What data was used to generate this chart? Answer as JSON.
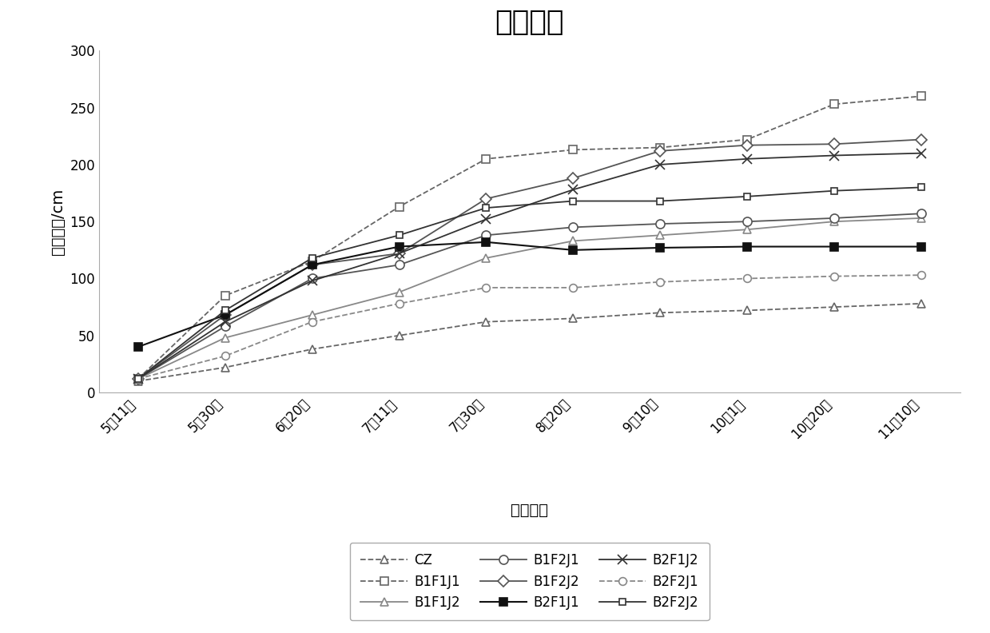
{
  "title": "新梢长度",
  "xlabel": "观测时间",
  "ylabel": "新梢长度/cm",
  "x_labels": [
    "5月11日",
    "5月30日",
    "6月20日",
    "7月11日",
    "7月30日",
    "8月20日",
    "9月10日",
    "10月1日",
    "10月20日",
    "11月10日"
  ],
  "ylim": [
    0,
    300
  ],
  "yticks": [
    0,
    50,
    100,
    150,
    200,
    250,
    300
  ],
  "series": [
    {
      "name": "CZ",
      "values": [
        10,
        22,
        38,
        50,
        62,
        65,
        70,
        72,
        75,
        78
      ],
      "color": "#666666",
      "linestyle": "--",
      "marker": "^",
      "markersize": 7,
      "linewidth": 1.3,
      "markerfilled": false
    },
    {
      "name": "B1F1J1",
      "values": [
        12,
        85,
        115,
        163,
        205,
        213,
        215,
        222,
        253,
        260
      ],
      "color": "#666666",
      "linestyle": "--",
      "marker": "s",
      "markersize": 7,
      "linewidth": 1.3,
      "markerfilled": false
    },
    {
      "name": "B1F1J2",
      "values": [
        12,
        48,
        68,
        88,
        118,
        133,
        138,
        143,
        150,
        153
      ],
      "color": "#888888",
      "linestyle": "-",
      "marker": "^",
      "markersize": 7,
      "linewidth": 1.3,
      "markerfilled": false
    },
    {
      "name": "B1F2J1",
      "values": [
        12,
        58,
        100,
        112,
        138,
        145,
        148,
        150,
        153,
        157
      ],
      "color": "#555555",
      "linestyle": "-",
      "marker": "o",
      "markersize": 8,
      "linewidth": 1.3,
      "markerfilled": false
    },
    {
      "name": "B1F2J2",
      "values": [
        12,
        68,
        112,
        122,
        170,
        188,
        212,
        217,
        218,
        222
      ],
      "color": "#555555",
      "linestyle": "-",
      "marker": "D",
      "markersize": 7,
      "linewidth": 1.3,
      "markerfilled": false
    },
    {
      "name": "B2F1J1",
      "values": [
        40,
        68,
        112,
        128,
        132,
        125,
        127,
        128,
        128,
        128
      ],
      "color": "#111111",
      "linestyle": "-",
      "marker": "s",
      "markersize": 7,
      "linewidth": 1.5,
      "markerfilled": true
    },
    {
      "name": "B2F1J2",
      "values": [
        12,
        62,
        98,
        122,
        152,
        178,
        200,
        205,
        208,
        210
      ],
      "color": "#333333",
      "linestyle": "-",
      "marker": "x",
      "markersize": 9,
      "linewidth": 1.3,
      "markerfilled": false
    },
    {
      "name": "B2F2J1",
      "values": [
        12,
        32,
        62,
        78,
        92,
        92,
        97,
        100,
        102,
        103
      ],
      "color": "#888888",
      "linestyle": "--",
      "marker": "o",
      "markersize": 7,
      "linewidth": 1.3,
      "markerfilled": false
    },
    {
      "name": "B2F2J2",
      "values": [
        12,
        72,
        118,
        138,
        162,
        168,
        168,
        172,
        177,
        180
      ],
      "color": "#333333",
      "linestyle": "-",
      "marker": "s",
      "markersize": 6,
      "linewidth": 1.3,
      "markerfilled": false
    }
  ],
  "legend_ncol": 3,
  "title_fontsize": 26,
  "label_fontsize": 14,
  "tick_fontsize": 12,
  "legend_fontsize": 12,
  "background_color": "#ffffff"
}
